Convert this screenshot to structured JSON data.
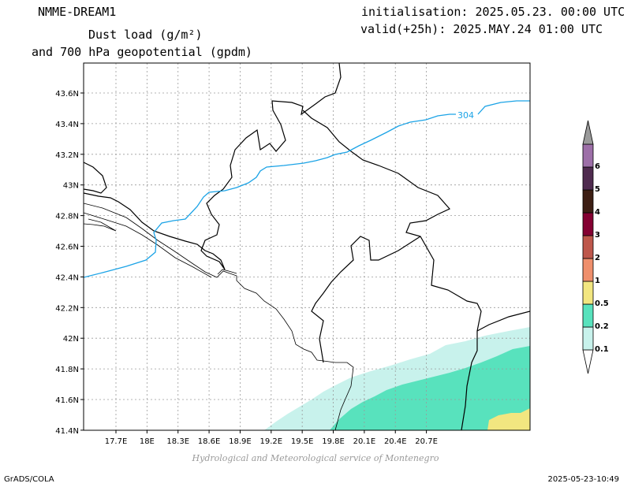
{
  "header": {
    "model": "NMME-DREAM1",
    "title_line1": "Dust load (g/m²)",
    "title_line2": "and 700 hPa geopotential (gpdm)",
    "init": "initialisation: 2025.05.23. 00:00 UTC",
    "valid": "valid(+25h): 2025.MAY.24 01:00 UTC"
  },
  "map": {
    "lon_ticks": [
      "17.7E",
      "18E",
      "18.3E",
      "18.6E",
      "18.9E",
      "19.2E",
      "19.5E",
      "19.8E",
      "20.1E",
      "20.4E",
      "20.7E"
    ],
    "lat_ticks": [
      "43.6N",
      "43.4N",
      "43.2N",
      "43N",
      "42.8N",
      "42.6N",
      "42.4N",
      "42.2N",
      "42N",
      "41.8N",
      "41.6N",
      "41.4N"
    ],
    "contour_label": "304",
    "colors": {
      "contour": "#1ba3e6",
      "grid": "#9a9a9a",
      "border": "#000000",
      "dust_0_1": "#c8f2ec",
      "dust_0_2": "#58e2bd",
      "dust_0_5": "#f2e680"
    }
  },
  "legend": {
    "items": [
      {
        "label": "0.1",
        "color": "#c8f2ec"
      },
      {
        "label": "0.2",
        "color": "#58e2bd"
      },
      {
        "label": "0.5",
        "color": "#f2e680"
      },
      {
        "label": "1",
        "color": "#ef8f6c"
      },
      {
        "label": "2",
        "color": "#be574b"
      },
      {
        "label": "3",
        "color": "#840032"
      },
      {
        "label": "4",
        "color": "#3d1e14"
      },
      {
        "label": "5",
        "color": "#4f2b4f"
      },
      {
        "label": "6",
        "color": "#9d6fa8"
      }
    ],
    "top_color": "#9a9a9a"
  },
  "footer": {
    "credit": "Hydrological and Meteorological service of Montenegro",
    "software": "GrADS/COLA",
    "timestamp": "2025-05-23-10:49"
  }
}
